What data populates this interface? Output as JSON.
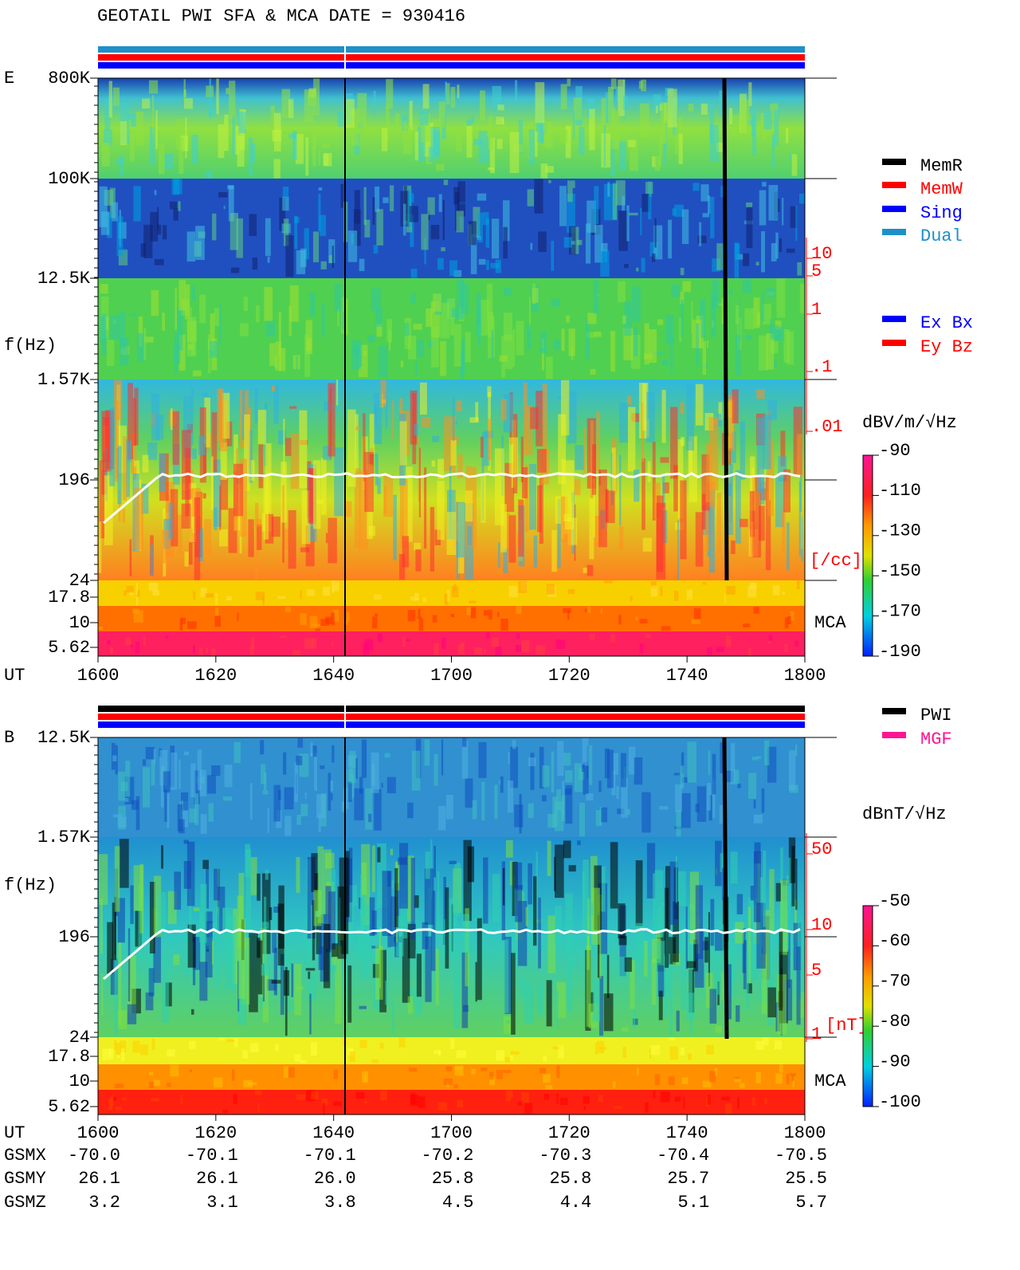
{
  "header": {
    "title": "GEOTAIL  PWI SFA & MCA   DATE = 930416"
  },
  "panels": [
    {
      "label": "E",
      "freq_labels": [
        "800K",
        "100K",
        "12.5K",
        "1.57K",
        "196",
        "24",
        "17.8",
        "10",
        "5.62"
      ],
      "axis_label": "f(Hz)",
      "ut_label": "UT",
      "ut_ticks": [
        "1600",
        "1620",
        "1640",
        "1700",
        "1720",
        "1740",
        "1800"
      ],
      "side_labels": [
        "10",
        "5",
        "1",
        ".1",
        ".01"
      ],
      "side_unit": "[/cc]",
      "mca_label": "MCA",
      "legend": [
        "MemR",
        "MemW",
        "Sing",
        "Dual"
      ],
      "legend2": [
        "Ex Bx",
        "Ey Bz"
      ],
      "colorbar": {
        "unit": "dBV/m/√Hz",
        "ticks": [
          "-90",
          "-110",
          "-130",
          "-150",
          "-170",
          "-190"
        ]
      }
    },
    {
      "label": "B",
      "freq_labels": [
        "12.5K",
        "1.57K",
        "196",
        "24",
        "17.8",
        "10",
        "5.62"
      ],
      "axis_label": "f(Hz)",
      "ut_label": "UT",
      "ut_ticks": [
        "1600",
        "1620",
        "1640",
        "1700",
        "1720",
        "1740",
        "1800"
      ],
      "side_labels": [
        "50",
        "10",
        "5",
        "1"
      ],
      "side_unit": "[nT]",
      "mca_label": "MCA",
      "legend": [
        "PWI",
        "MGF"
      ],
      "colorbar": {
        "unit": "dBnT/√Hz",
        "ticks": [
          "-50",
          "-60",
          "-70",
          "-80",
          "-90",
          "-100"
        ]
      }
    }
  ],
  "orbit": {
    "rows": [
      {
        "label": "GSMX",
        "values": [
          "-70.0",
          "-70.1",
          "-70.1",
          "-70.2",
          "-70.3",
          "-70.4",
          "-70.5"
        ]
      },
      {
        "label": "GSMY",
        "values": [
          "26.1",
          "26.1",
          "26.0",
          "25.8",
          "25.8",
          "25.7",
          "25.5"
        ]
      },
      {
        "label": "GSMZ",
        "values": [
          "3.2",
          "3.1",
          "3.8",
          "4.5",
          "4.4",
          "5.1",
          "5.7"
        ]
      }
    ]
  }
}
